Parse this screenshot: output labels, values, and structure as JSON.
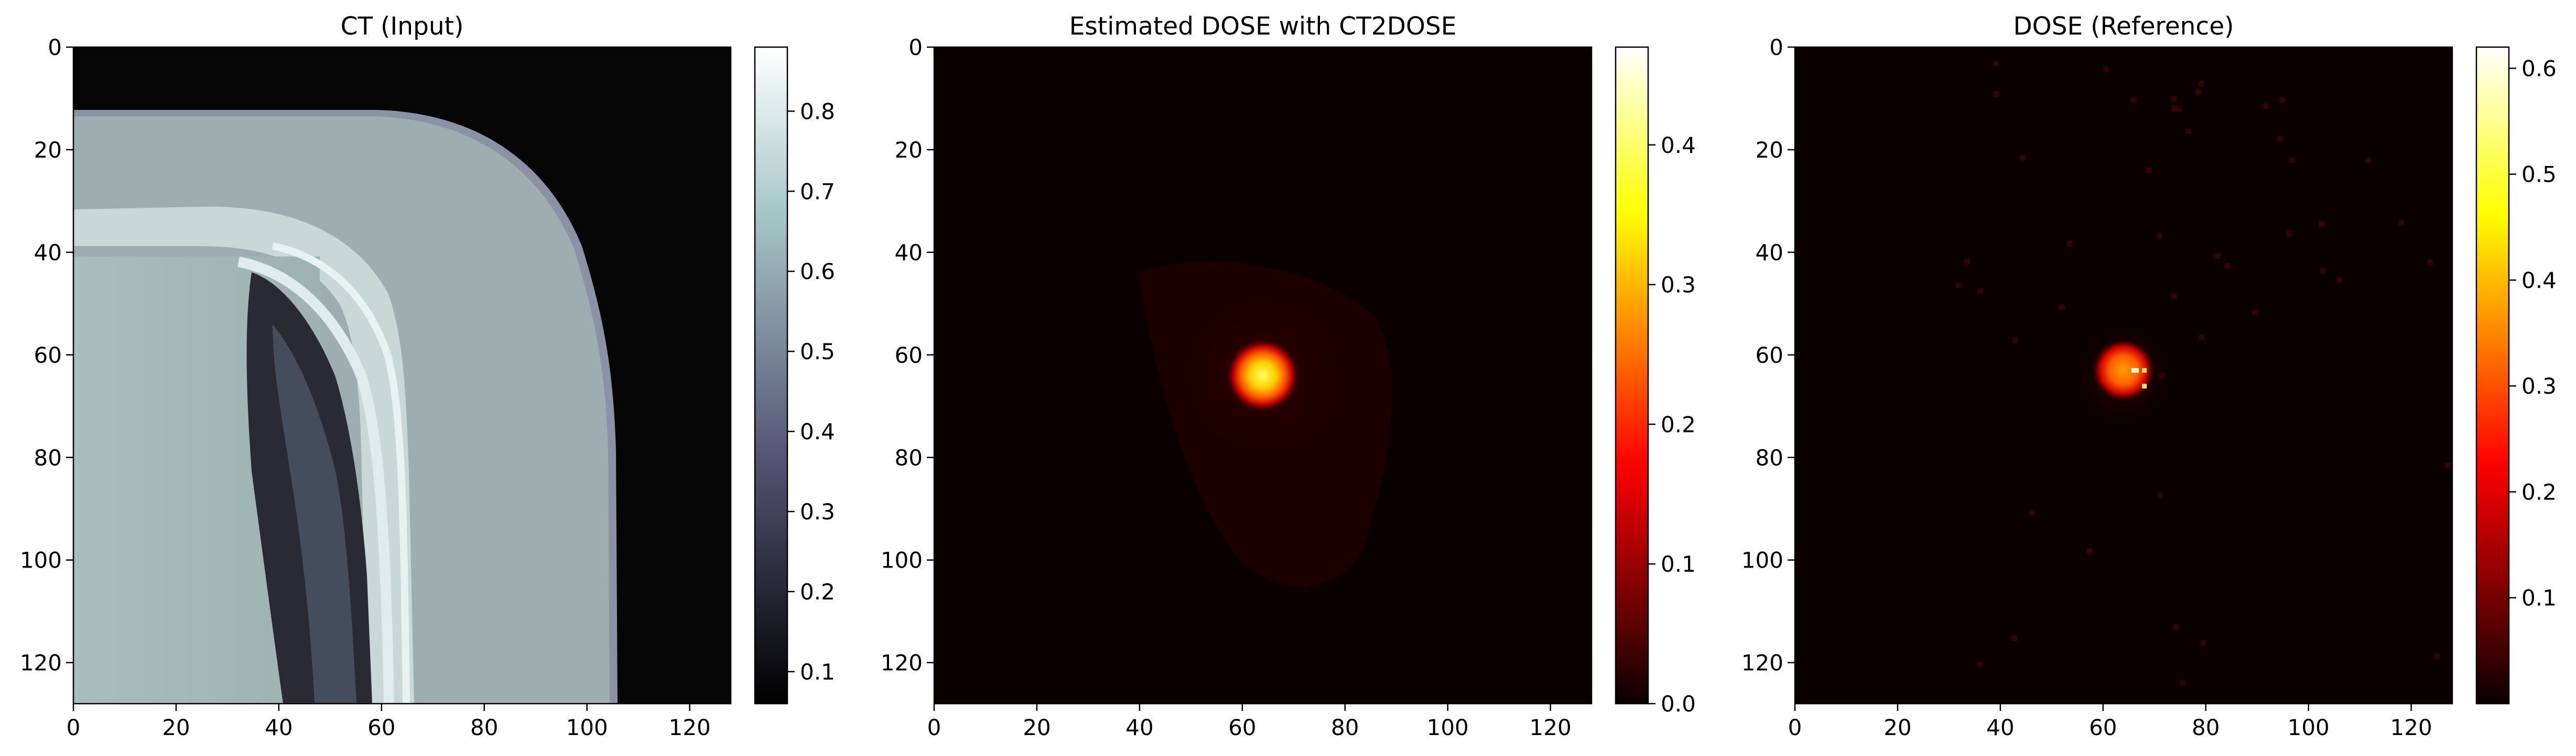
{
  "chart_data": [
    {
      "type": "heatmap",
      "title": "CT (Input)",
      "colormap": "bone",
      "xlim": [
        0,
        128
      ],
      "ylim": [
        128,
        0
      ],
      "xticks": [
        0,
        20,
        40,
        60,
        80,
        100,
        120
      ],
      "yticks": [
        0,
        20,
        40,
        60,
        80,
        100,
        120
      ],
      "colorbar": {
        "range": [
          0.06,
          0.88
        ],
        "ticks": [
          0.1,
          0.2,
          0.3,
          0.4,
          0.5,
          0.6,
          0.7,
          0.8
        ]
      }
    },
    {
      "type": "heatmap",
      "title": "Estimated DOSE with CT2DOSE",
      "colormap": "hot",
      "xlim": [
        0,
        128
      ],
      "ylim": [
        128,
        0
      ],
      "xticks": [
        0,
        20,
        40,
        60,
        80,
        100,
        120
      ],
      "yticks": [
        0,
        20,
        40,
        60,
        80,
        100,
        120
      ],
      "colorbar": {
        "range": [
          0.0,
          0.47
        ],
        "ticks": [
          0.0,
          0.1,
          0.2,
          0.3,
          0.4
        ]
      },
      "hotspot": {
        "x": 64,
        "y": 64,
        "peak": 0.47
      }
    },
    {
      "type": "heatmap",
      "title": "DOSE (Reference)",
      "colormap": "hot",
      "xlim": [
        0,
        128
      ],
      "ylim": [
        128,
        0
      ],
      "xticks": [
        0,
        20,
        40,
        60,
        80,
        100,
        120
      ],
      "yticks": [
        0,
        20,
        40,
        60,
        80,
        100,
        120
      ],
      "colorbar": {
        "range": [
          0.0,
          0.62
        ],
        "ticks": [
          0.1,
          0.2,
          0.3,
          0.4,
          0.5,
          0.6
        ]
      },
      "hotspot": {
        "x": 64,
        "y": 63,
        "peak": 0.62
      }
    }
  ]
}
